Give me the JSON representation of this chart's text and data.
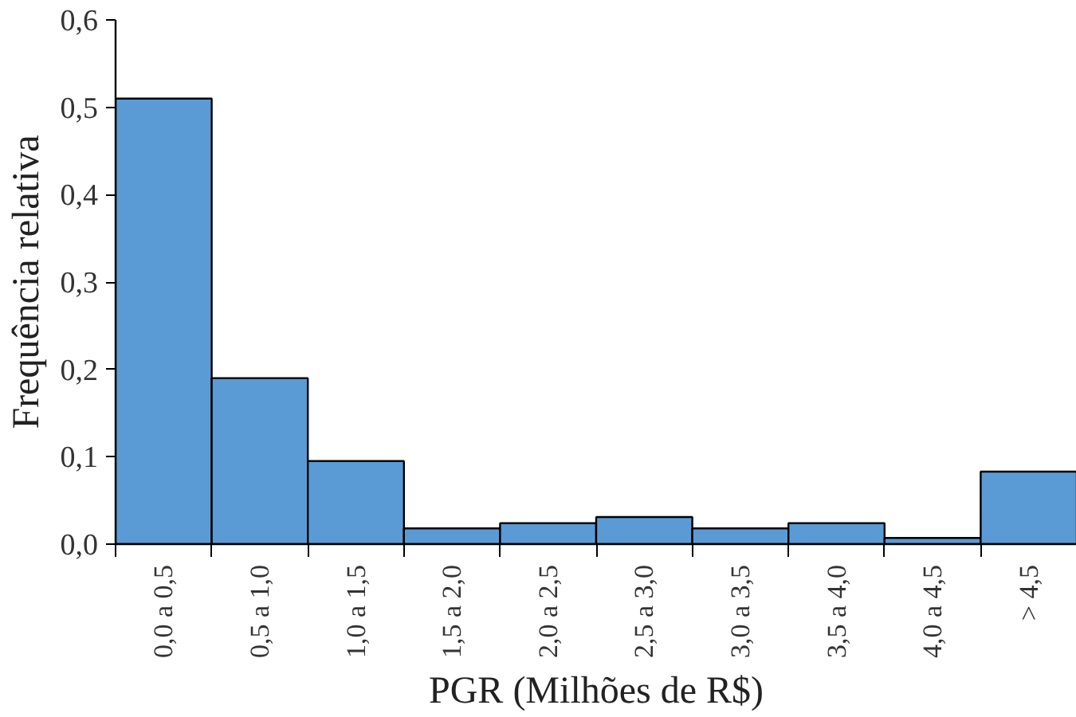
{
  "chart_data": {
    "type": "bar",
    "xlabel": "PGR (Milhões de R$)",
    "ylabel": "Frequência relativa",
    "categories": [
      "0,0 a 0,5",
      "0,5 a 1,0",
      "1,0 a 1,5",
      "1,5 a 2,0",
      "2,0 a 2,5",
      "2,5 a 3,0",
      "3,0 a 3,5",
      "3,5 a 4,0",
      "4,0 a 4,5",
      "> 4,5"
    ],
    "values": [
      0.51,
      0.19,
      0.095,
      0.018,
      0.024,
      0.031,
      0.018,
      0.024,
      0.007,
      0.083
    ],
    "color": "#5b9bd5",
    "ylim": [
      0,
      0.6
    ],
    "yticks": [
      {
        "value": 0,
        "label": "0,0"
      },
      {
        "value": 0.1,
        "label": "0,1"
      },
      {
        "value": 0.2,
        "label": "0,2"
      },
      {
        "value": 0.3,
        "label": "0,3"
      },
      {
        "value": 0.4,
        "label": "0,4"
      },
      {
        "value": 0.5,
        "label": "0,5"
      },
      {
        "value": 0.6,
        "label": "0,6"
      }
    ],
    "grid": false
  }
}
